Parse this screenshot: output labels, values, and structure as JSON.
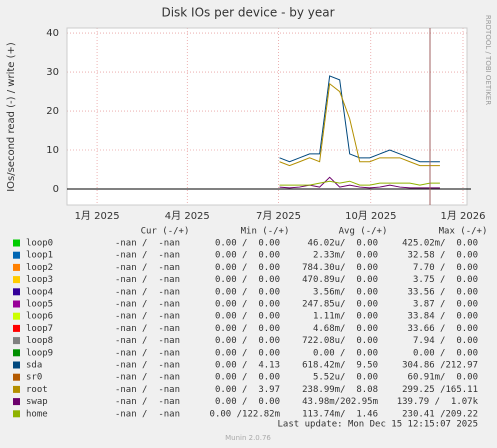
{
  "chart_data": {
    "type": "line",
    "title": "Disk IOs per device - by year",
    "y_label": "IOs/second read (-) / write (+)",
    "side_label": "RRDTOOL / TOBI OETIKER",
    "xlim": [
      -30,
      369
    ],
    "xticks": [
      {
        "value": 0,
        "label": "1月 2025"
      },
      {
        "value": 90,
        "label": "4月 2025"
      },
      {
        "value": 181,
        "label": "7月 2025"
      },
      {
        "value": 273,
        "label": "10月 2025"
      },
      {
        "value": 365,
        "label": "1月 2026"
      }
    ],
    "ylim": [
      -4.1,
      41.3
    ],
    "yticks": [
      0,
      10,
      20,
      30,
      40
    ],
    "grid": true,
    "legend_headers": [
      "Cur (-/+)",
      "Min (-/+)",
      "Avg (-/+)",
      "Max (-/+)"
    ],
    "x": [
      182,
      192,
      202,
      212,
      222,
      232,
      242,
      252,
      262,
      272,
      282,
      292,
      302,
      312,
      322,
      332,
      342
    ],
    "series": [
      {
        "name": "loop0",
        "color": "#00cc00",
        "stats": [
          "-nan /  -nan",
          "0.00 /  0.00",
          "46.02u/  0.00",
          "425.02m/  0.00"
        ],
        "values": [
          0,
          0,
          0,
          0,
          0,
          0,
          0,
          0,
          0,
          0,
          0,
          0,
          0,
          0,
          0,
          0,
          0
        ]
      },
      {
        "name": "loop1",
        "color": "#0066b3",
        "stats": [
          "-nan /  -nan",
          "0.00 /  0.00",
          "2.33m/  0.00",
          "32.58 /  0.00"
        ],
        "values": [
          0,
          0,
          0,
          0,
          0,
          0,
          0,
          0,
          0,
          0,
          0,
          0,
          0,
          0,
          0,
          0,
          0
        ]
      },
      {
        "name": "loop2",
        "color": "#ff8000",
        "stats": [
          "-nan /  -nan",
          "0.00 /  0.00",
          "784.30u/  0.00",
          "7.70 /  0.00"
        ],
        "values": [
          0,
          0,
          0,
          0,
          0,
          0,
          0,
          0,
          0,
          0,
          0,
          0,
          0,
          0,
          0,
          0,
          0
        ]
      },
      {
        "name": "loop3",
        "color": "#ffcc00",
        "stats": [
          "-nan /  -nan",
          "0.00 /  0.00",
          "470.89u/  0.00",
          "3.75 /  0.00"
        ],
        "values": [
          0,
          0,
          0,
          0,
          0,
          0,
          0,
          0,
          0,
          0,
          0,
          0,
          0,
          0,
          0,
          0,
          0
        ]
      },
      {
        "name": "loop4",
        "color": "#330099",
        "stats": [
          "-nan /  -nan",
          "0.00 /  0.00",
          "3.56m/  0.00",
          "33.56 /  0.00"
        ],
        "values": [
          0,
          0,
          0,
          0,
          0,
          0,
          0,
          0,
          0,
          0,
          0,
          0,
          0,
          0,
          0,
          0,
          0
        ]
      },
      {
        "name": "loop5",
        "color": "#990099",
        "stats": [
          "-nan /  -nan",
          "0.00 /  0.00",
          "247.85u/  0.00",
          "3.87 /  0.00"
        ],
        "values": [
          0,
          0,
          0,
          0,
          0,
          0,
          0,
          0,
          0,
          0,
          0,
          0,
          0,
          0,
          0,
          0,
          0
        ]
      },
      {
        "name": "loop6",
        "color": "#ccff00",
        "stats": [
          "-nan /  -nan",
          "0.00 /  0.00",
          "1.11m/  0.00",
          "33.84 /  0.00"
        ],
        "values": [
          0,
          0,
          0,
          0,
          0,
          0,
          0,
          0,
          0,
          0,
          0,
          0,
          0,
          0,
          0,
          0,
          0
        ]
      },
      {
        "name": "loop7",
        "color": "#ff0000",
        "stats": [
          "-nan /  -nan",
          "0.00 /  0.00",
          "4.68m/  0.00",
          "33.66 /  0.00"
        ],
        "values": [
          0,
          0,
          0,
          0,
          0,
          0,
          0,
          0,
          0,
          0,
          0,
          0,
          0,
          0,
          0,
          0,
          0
        ]
      },
      {
        "name": "loop8",
        "color": "#808080",
        "stats": [
          "-nan /  -nan",
          "0.00 /  0.00",
          "722.08u/  0.00",
          "7.94 /  0.00"
        ],
        "values": [
          0,
          0,
          0,
          0,
          0,
          0,
          0,
          0,
          0,
          0,
          0,
          0,
          0,
          0,
          0,
          0,
          0
        ]
      },
      {
        "name": "loop9",
        "color": "#008f00",
        "stats": [
          "-nan /  -nan",
          "0.00 /  0.00",
          "0.00 /  0.00",
          "0.00 /  0.00"
        ],
        "values": [
          0,
          0,
          0,
          0,
          0,
          0,
          0,
          0,
          0,
          0,
          0,
          0,
          0,
          0,
          0,
          0,
          0
        ]
      },
      {
        "name": "sda",
        "color": "#00487d",
        "stats": [
          "-nan /  -nan",
          "0.00 /  4.13",
          "618.42m/  9.50",
          "304.86 /212.97"
        ],
        "values": [
          8,
          7,
          8,
          9,
          9,
          29,
          28,
          9,
          8,
          8,
          9,
          10,
          9,
          8,
          7,
          7,
          7
        ]
      },
      {
        "name": "sr0",
        "color": "#b35a00",
        "stats": [
          "-nan /  -nan",
          "0.00 /  0.00",
          "5.52u/  0.00",
          "60.91m/  0.00"
        ],
        "values": [
          0,
          0,
          0,
          0,
          0,
          0,
          0,
          0,
          0,
          0,
          0,
          0,
          0,
          0,
          0,
          0,
          0
        ]
      },
      {
        "name": "root",
        "color": "#b38f00",
        "stats": [
          "-nan /  -nan",
          "0.00 /  3.97",
          "238.99m/  8.08",
          "299.25 /165.11"
        ],
        "values": [
          7,
          6,
          7,
          8,
          7,
          27,
          25,
          18,
          7,
          7,
          8,
          8,
          8,
          7,
          6,
          6,
          6
        ]
      },
      {
        "name": "swap",
        "color": "#6b006b",
        "stats": [
          "-nan /  -nan",
          "0.00 /  0.00",
          "43.98m/202.95m",
          "139.79 /  1.07k"
        ],
        "values": [
          0.5,
          0.3,
          0.5,
          1,
          0.5,
          3,
          0.5,
          1,
          0.5,
          0.3,
          0.5,
          1,
          0.5,
          0.3,
          0.3,
          0.3,
          0.3
        ]
      },
      {
        "name": "home",
        "color": "#8fb300",
        "stats": [
          "-nan /  -nan",
          "0.00 /122.82m",
          "113.74m/  1.46",
          "230.41 /209.22"
        ],
        "values": [
          1,
          1,
          1,
          1,
          1.5,
          2,
          1.5,
          2,
          1,
          1,
          1.5,
          1.5,
          1.5,
          1.5,
          1,
          1.5,
          1.5
        ]
      }
    ],
    "last_update": "Last update: Mon Dec 15 12:15:07 2025",
    "footer": "Munin 2.0.76"
  }
}
